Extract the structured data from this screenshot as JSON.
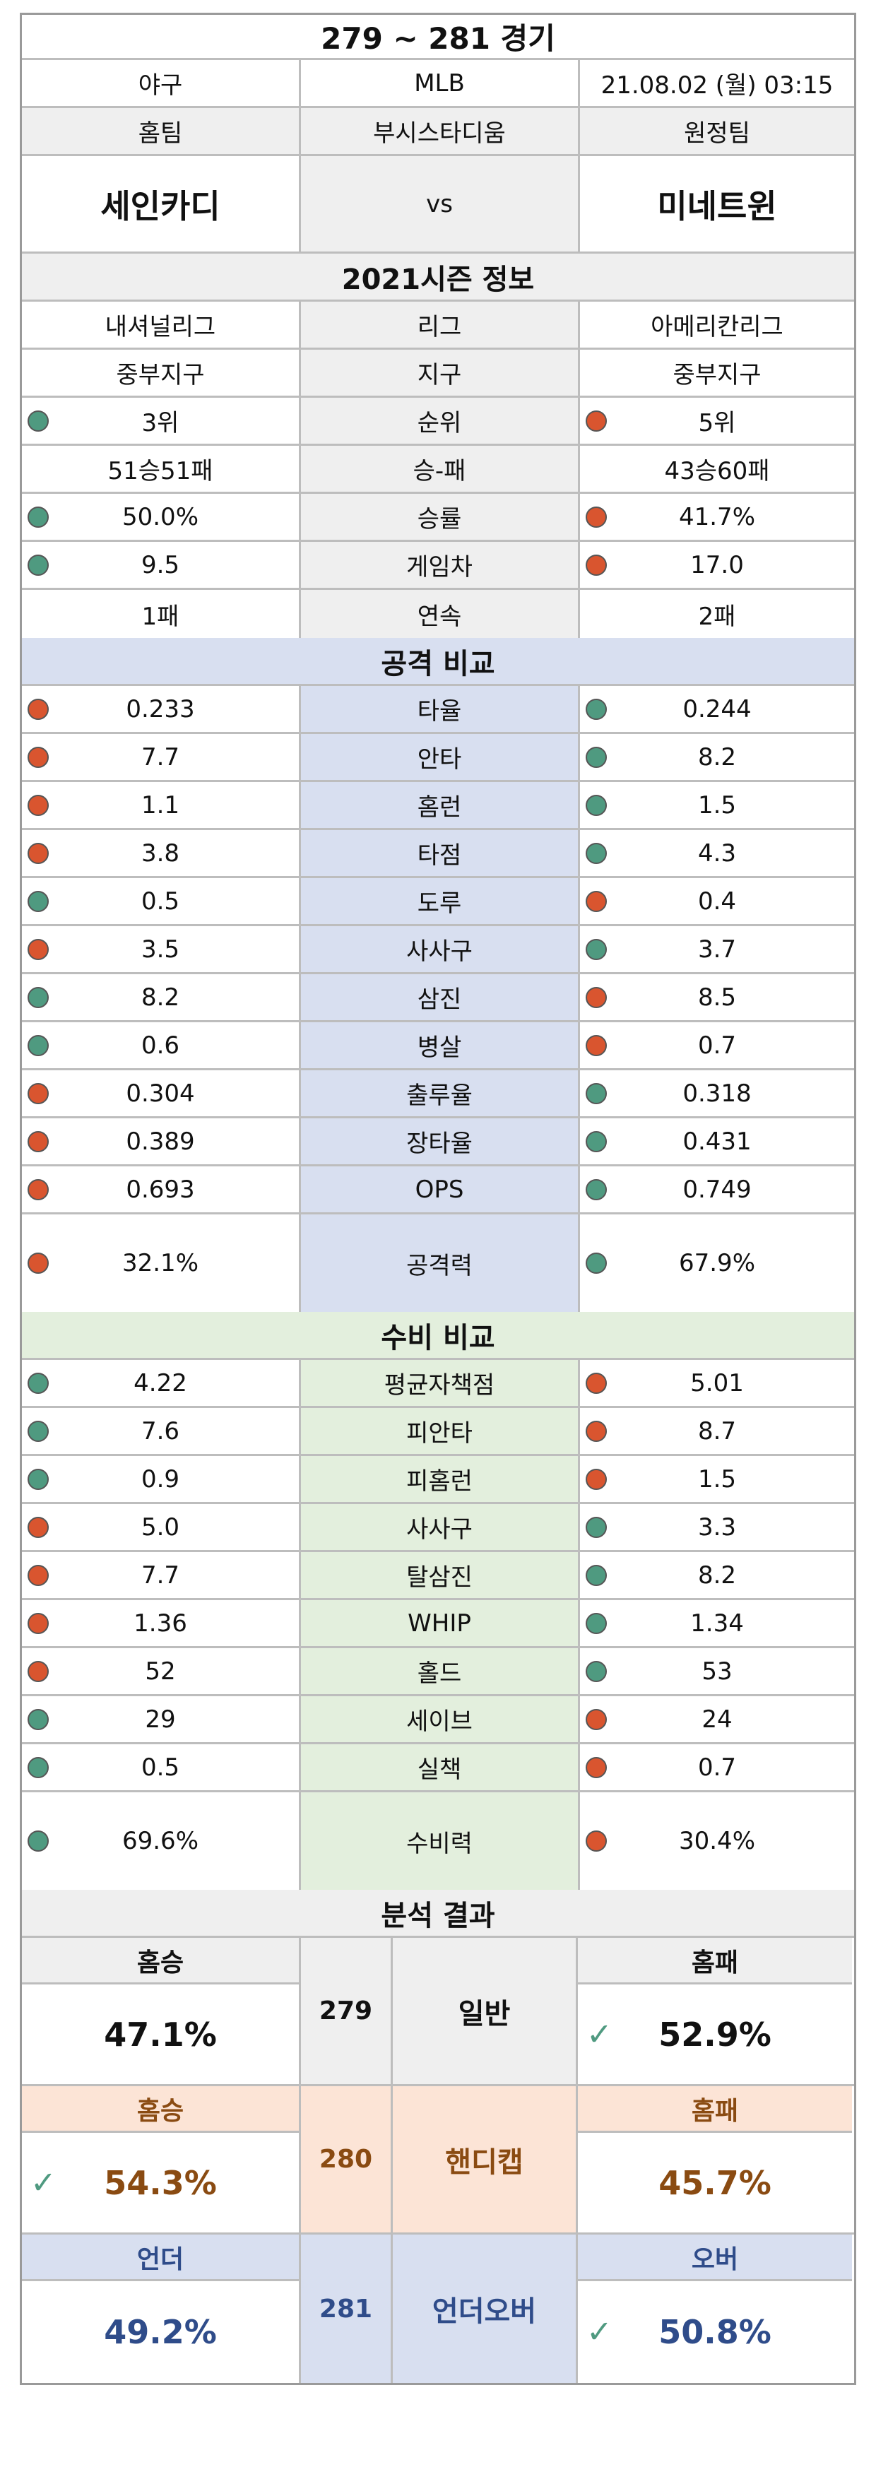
{
  "title": "279 ~ 281 경기",
  "meta": {
    "sport": "야구",
    "league": "MLB",
    "datetime": "21.08.02 (월) 03:15"
  },
  "teams": {
    "home_label": "홈팀",
    "stadium": "부시스타디움",
    "away_label": "원정팀",
    "home": "세인카디",
    "vs": "vs",
    "away": "미네트윈"
  },
  "season": {
    "title": "2021시즌 정보",
    "rows": [
      {
        "label": "리그",
        "home": "내셔널리그",
        "away": "아메리칸리그"
      },
      {
        "label": "지구",
        "home": "중부지구",
        "away": "중부지구"
      },
      {
        "label": "순위",
        "home": "3위",
        "away": "5위",
        "home_dot": "g",
        "away_dot": "r"
      },
      {
        "label": "승-패",
        "home": "51승51패",
        "away": "43승60패"
      },
      {
        "label": "승률",
        "home": "50.0%",
        "away": "41.7%",
        "home_dot": "g",
        "away_dot": "r"
      },
      {
        "label": "게임차",
        "home": "9.5",
        "away": "17.0",
        "home_dot": "g",
        "away_dot": "r"
      },
      {
        "label": "연속",
        "home": "1패",
        "away": "2패"
      }
    ]
  },
  "attack": {
    "title": "공격 비교",
    "rows": [
      {
        "label": "타율",
        "home": "0.233",
        "away": "0.244",
        "home_dot": "r",
        "away_dot": "g"
      },
      {
        "label": "안타",
        "home": "7.7",
        "away": "8.2",
        "home_dot": "r",
        "away_dot": "g"
      },
      {
        "label": "홈런",
        "home": "1.1",
        "away": "1.5",
        "home_dot": "r",
        "away_dot": "g"
      },
      {
        "label": "타점",
        "home": "3.8",
        "away": "4.3",
        "home_dot": "r",
        "away_dot": "g"
      },
      {
        "label": "도루",
        "home": "0.5",
        "away": "0.4",
        "home_dot": "g",
        "away_dot": "r"
      },
      {
        "label": "사사구",
        "home": "3.5",
        "away": "3.7",
        "home_dot": "r",
        "away_dot": "g"
      },
      {
        "label": "삼진",
        "home": "8.2",
        "away": "8.5",
        "home_dot": "g",
        "away_dot": "r"
      },
      {
        "label": "병살",
        "home": "0.6",
        "away": "0.7",
        "home_dot": "g",
        "away_dot": "r"
      },
      {
        "label": "출루율",
        "home": "0.304",
        "away": "0.318",
        "home_dot": "r",
        "away_dot": "g"
      },
      {
        "label": "장타율",
        "home": "0.389",
        "away": "0.431",
        "home_dot": "r",
        "away_dot": "g"
      },
      {
        "label": "OPS",
        "home": "0.693",
        "away": "0.749",
        "home_dot": "r",
        "away_dot": "g"
      },
      {
        "label": "공격력",
        "home": "32.1%",
        "away": "67.9%",
        "home_dot": "r",
        "away_dot": "g",
        "tall": true
      }
    ]
  },
  "defense": {
    "title": "수비 비교",
    "rows": [
      {
        "label": "평균자책점",
        "home": "4.22",
        "away": "5.01",
        "home_dot": "g",
        "away_dot": "r"
      },
      {
        "label": "피안타",
        "home": "7.6",
        "away": "8.7",
        "home_dot": "g",
        "away_dot": "r"
      },
      {
        "label": "피홈런",
        "home": "0.9",
        "away": "1.5",
        "home_dot": "g",
        "away_dot": "r"
      },
      {
        "label": "사사구",
        "home": "5.0",
        "away": "3.3",
        "home_dot": "r",
        "away_dot": "g"
      },
      {
        "label": "탈삼진",
        "home": "7.7",
        "away": "8.2",
        "home_dot": "r",
        "away_dot": "g"
      },
      {
        "label": "WHIP",
        "home": "1.36",
        "away": "1.34",
        "home_dot": "r",
        "away_dot": "g"
      },
      {
        "label": "홀드",
        "home": "52",
        "away": "53",
        "home_dot": "r",
        "away_dot": "g"
      },
      {
        "label": "세이브",
        "home": "29",
        "away": "24",
        "home_dot": "g",
        "away_dot": "r"
      },
      {
        "label": "실책",
        "home": "0.5",
        "away": "0.7",
        "home_dot": "g",
        "away_dot": "r"
      },
      {
        "label": "수비력",
        "home": "69.6%",
        "away": "30.4%",
        "home_dot": "g",
        "away_dot": "r",
        "tall": true
      }
    ]
  },
  "analysis": {
    "title": "분석 결과",
    "blocks": [
      {
        "game": "279",
        "type": "일반",
        "left_label": "홈승",
        "left_value": "47.1%",
        "right_label": "홈패",
        "right_value": "52.9%",
        "pick": "right",
        "theme": "gray"
      },
      {
        "game": "280",
        "type": "핸디캡",
        "left_label": "홈승",
        "left_value": "54.3%",
        "right_label": "홈패",
        "right_value": "45.7%",
        "pick": "left",
        "theme": "orange"
      },
      {
        "game": "281",
        "type": "언더오버",
        "left_label": "언더",
        "left_value": "49.2%",
        "right_label": "오버",
        "right_value": "50.8%",
        "pick": "right",
        "theme": "blue"
      }
    ]
  }
}
